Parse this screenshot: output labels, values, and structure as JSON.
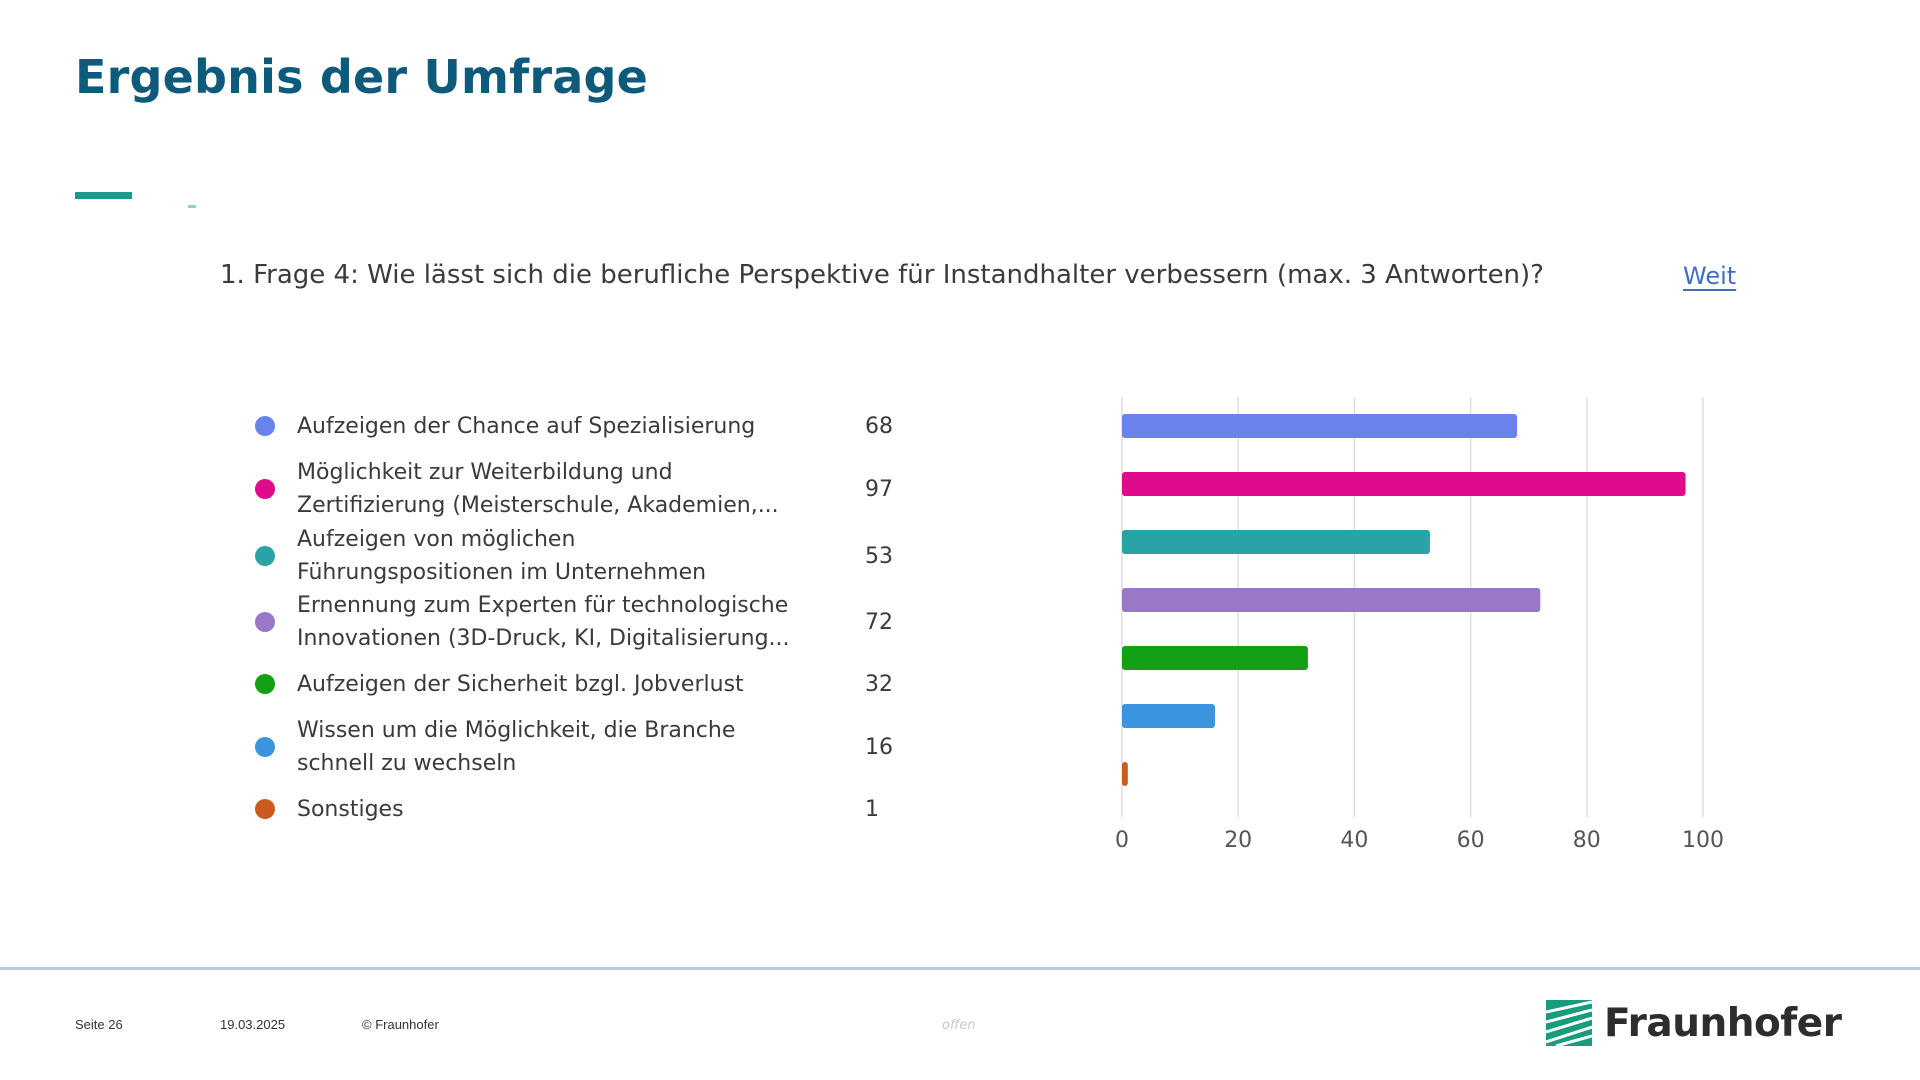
{
  "slide": {
    "title": "Ergebnis der Umfrage",
    "question": "1. Frage 4: Wie lässt sich die berufliche Perspektive für Instandhalter verbessern (max. 3 Antworten)?",
    "more_link": "Weit"
  },
  "legend": [
    {
      "lines": [
        "Aufzeigen der Chance auf Spezialisierung"
      ],
      "count": "68",
      "color": "#6a83ec"
    },
    {
      "lines": [
        "Möglichkeit zur Weiterbildung und",
        "Zertifizierung (Meisterschule, Akademien,..."
      ],
      "count": "97",
      "color": "#e00a8c"
    },
    {
      "lines": [
        "Aufzeigen von möglichen",
        "Führungspositionen im Unternehmen"
      ],
      "count": "53",
      "color": "#2aa3a6"
    },
    {
      "lines": [
        "Ernennung zum Experten für technologische",
        "Innovationen (3D-Druck, KI, Digitalisierung..."
      ],
      "count": "72",
      "color": "#9a78c8"
    },
    {
      "lines": [
        "Aufzeigen der Sicherheit bzgl. Jobverlust"
      ],
      "count": "32",
      "color": "#14a014"
    },
    {
      "lines": [
        "Wissen um die Möglichkeit, die Branche",
        "schnell zu wechseln"
      ],
      "count": "16",
      "color": "#3b94e0"
    },
    {
      "lines": [
        "Sonstiges"
      ],
      "count": "1",
      "color": "#cc5a1e"
    }
  ],
  "chart_data": {
    "type": "bar",
    "orientation": "horizontal",
    "categories": [
      "Aufzeigen der Chance auf Spezialisierung",
      "Möglichkeit zur Weiterbildung und Zertifizierung (Meisterschule, Akademien,...",
      "Aufzeigen von möglichen Führungspositionen im Unternehmen",
      "Ernennung zum Experten für technologische Innovationen (3D-Druck, KI, Digitalisierung...",
      "Aufzeigen der Sicherheit bzgl. Jobverlust",
      "Wissen um die Möglichkeit, die Branche schnell zu wechseln",
      "Sonstiges"
    ],
    "values": [
      68,
      97,
      53,
      72,
      32,
      16,
      1
    ],
    "colors": [
      "#6a83ec",
      "#e00a8c",
      "#2aa3a6",
      "#9a78c8",
      "#14a014",
      "#3b94e0",
      "#cc5a1e"
    ],
    "xlim": [
      0,
      100
    ],
    "xticks": [
      0,
      20,
      40,
      60,
      80,
      100
    ],
    "grid": true,
    "legend": "left"
  },
  "footer": {
    "page": "Seite 26",
    "date": "19.03.2025",
    "copyright": "© Fraunhofer",
    "classification": "offen",
    "logo_text": "Fraunhofer",
    "logo_color": "#179c7d"
  }
}
